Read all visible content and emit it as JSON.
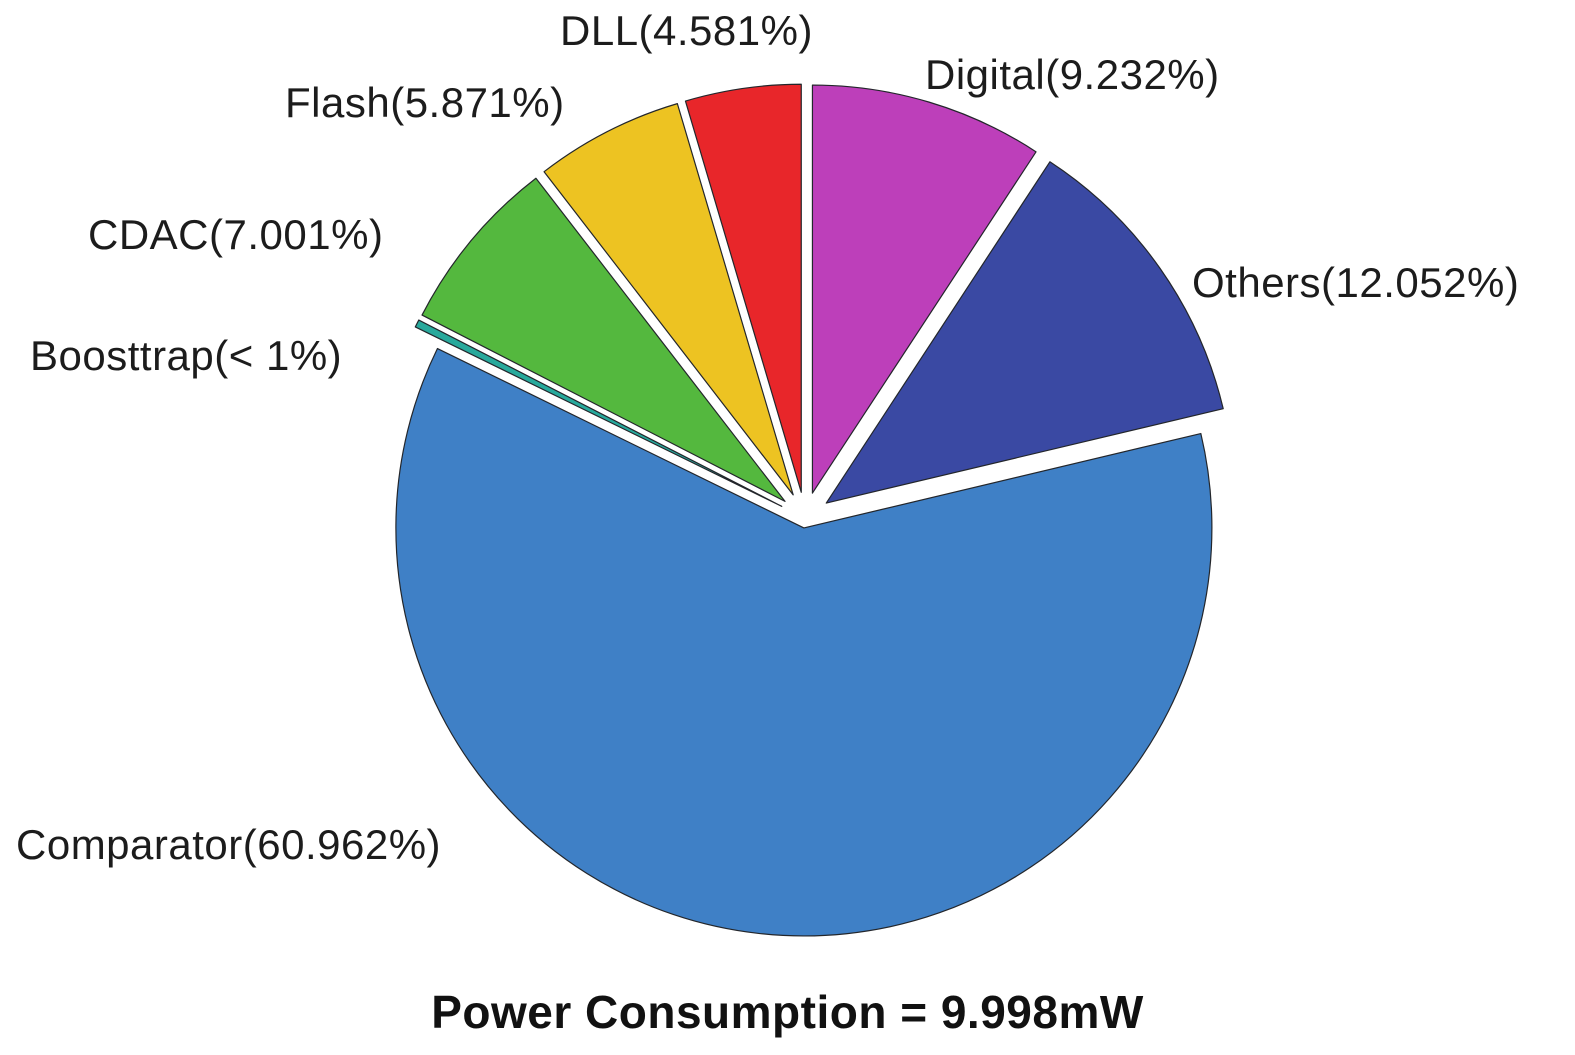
{
  "chart_data": {
    "type": "pie",
    "title": "Power Consumption = 9.998mW",
    "start_angle_deg": 0,
    "direction": "clockwise",
    "exploded": true,
    "legend_position": "none",
    "slices": [
      {
        "name": "Digital",
        "percent": 9.232,
        "label": "Digital(9.232%)",
        "color": "#bd3fba"
      },
      {
        "name": "Others",
        "percent": 12.052,
        "label": "Others(12.052%)",
        "color": "#3a49a3"
      },
      {
        "name": "Comparator",
        "percent": 60.962,
        "label": "Comparator(60.962%)",
        "color": "#3f80c6"
      },
      {
        "name": "Boosttrap",
        "percent": 0.301,
        "label": "Boosttrap(< 1%)",
        "color": "#28a99c"
      },
      {
        "name": "CDAC",
        "percent": 7.001,
        "label": "CDAC(7.001%)",
        "color": "#54b83e"
      },
      {
        "name": "Flash",
        "percent": 5.871,
        "label": "Flash(5.871%)",
        "color": "#edc322"
      },
      {
        "name": "DLL",
        "percent": 4.581,
        "label": "DLL(4.581%)",
        "color": "#e8262a"
      }
    ]
  }
}
